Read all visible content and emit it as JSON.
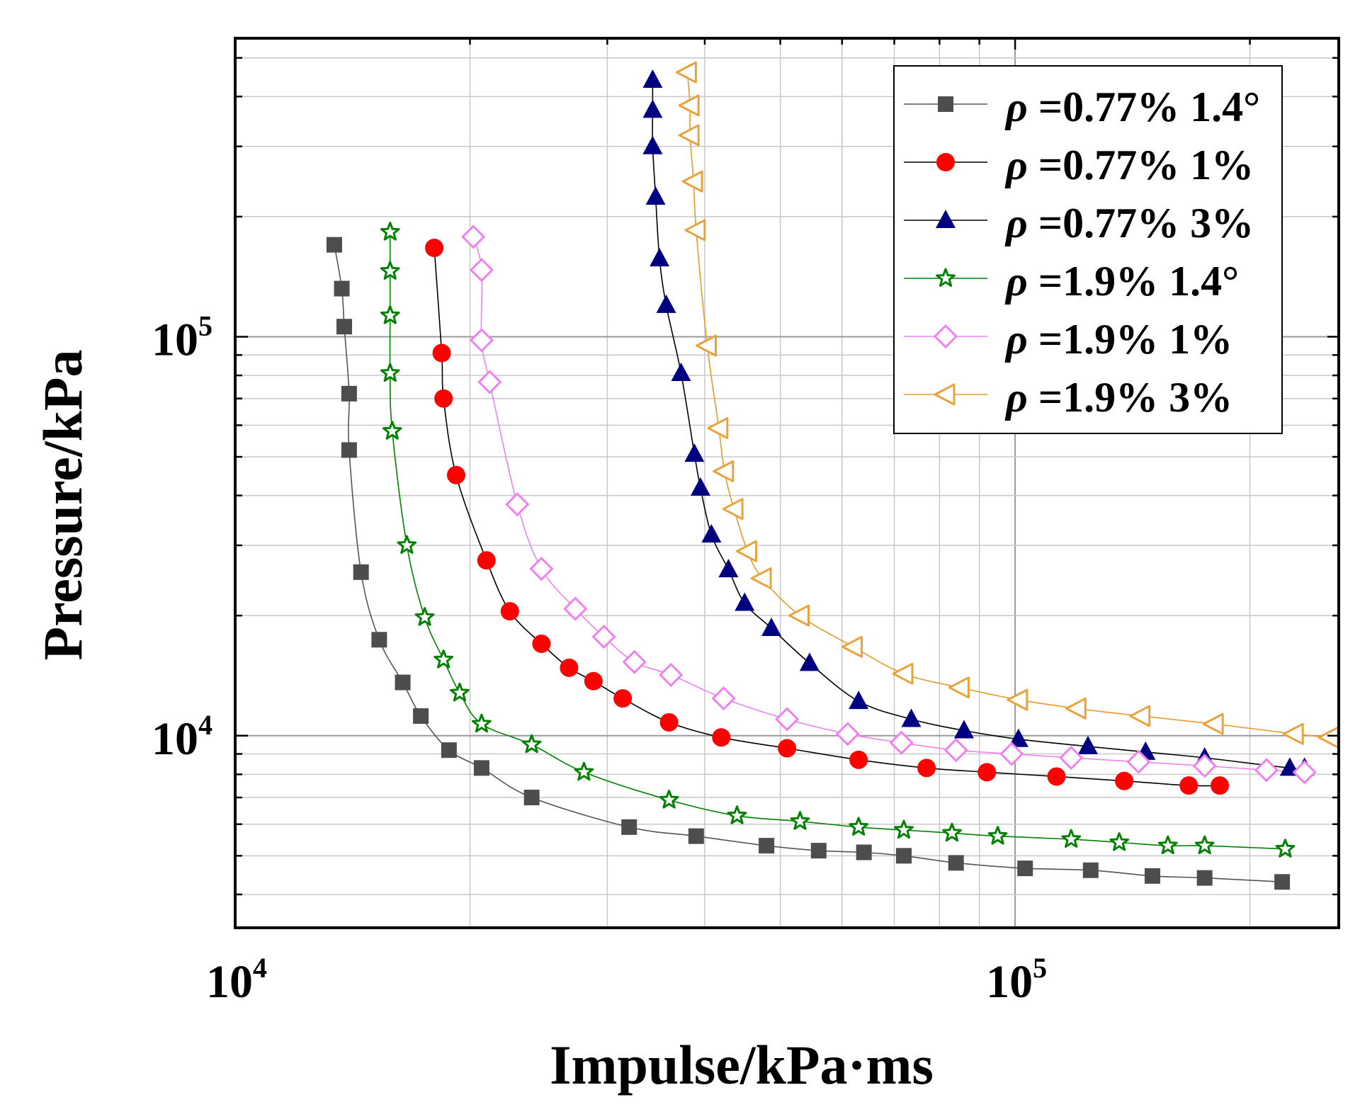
{
  "chart_data": {
    "type": "line",
    "xscale": "log",
    "yscale": "log",
    "xlabel": "Impulse/kPa·ms",
    "ylabel": "Pressure/kPa",
    "xlim": [
      10000,
      260000
    ],
    "ylim": [
      3300,
      560000
    ],
    "x_ticks": [
      {
        "value": 10000,
        "base": "10",
        "exp": "4"
      },
      {
        "value": 100000,
        "base": "10",
        "exp": "5"
      }
    ],
    "y_ticks": [
      {
        "value": 10000,
        "base": "10",
        "exp": "4"
      },
      {
        "value": 100000,
        "base": "10",
        "exp": "5"
      }
    ],
    "grid": true,
    "legend_position": "top-right",
    "series": [
      {
        "name": "ρ =0.77% 1.4°",
        "rho": "ρ",
        "label_rest": " =0.77% 1.4°",
        "marker": "square",
        "color": "#4d4d4d",
        "line_color": "#555555",
        "points": [
          [
            13400,
            170000
          ],
          [
            13700,
            132000
          ],
          [
            13800,
            106000
          ],
          [
            14000,
            72000
          ],
          [
            14000,
            52000
          ],
          [
            14500,
            25700
          ],
          [
            15300,
            17400
          ],
          [
            16400,
            13600
          ],
          [
            17300,
            11200
          ],
          [
            18800,
            9200
          ],
          [
            20700,
            8300
          ],
          [
            24000,
            7000
          ],
          [
            32000,
            5900
          ],
          [
            39000,
            5600
          ],
          [
            48000,
            5300
          ],
          [
            56000,
            5150
          ],
          [
            64000,
            5100
          ],
          [
            72000,
            5000
          ],
          [
            84000,
            4800
          ],
          [
            103000,
            4650
          ],
          [
            125000,
            4600
          ],
          [
            150000,
            4450
          ],
          [
            175000,
            4400
          ],
          [
            220000,
            4300
          ]
        ]
      },
      {
        "name": "ρ =0.77%  1%",
        "rho": "ρ",
        "label_rest": " =0.77%  1%",
        "marker": "circle",
        "color": "#ff0000",
        "line_color": "#000000",
        "points": [
          [
            18000,
            167000
          ],
          [
            18400,
            91000
          ],
          [
            18500,
            70000
          ],
          [
            19200,
            45000
          ],
          [
            21000,
            27500
          ],
          [
            22500,
            20500
          ],
          [
            24700,
            17000
          ],
          [
            26800,
            14800
          ],
          [
            28800,
            13700
          ],
          [
            31400,
            12400
          ],
          [
            36000,
            10800
          ],
          [
            42000,
            9900
          ],
          [
            51000,
            9300
          ],
          [
            63000,
            8700
          ],
          [
            77000,
            8300
          ],
          [
            92000,
            8100
          ],
          [
            113000,
            7900
          ],
          [
            138000,
            7700
          ],
          [
            167000,
            7500
          ],
          [
            183000,
            7500
          ]
        ]
      },
      {
        "name": "ρ =0.77%  3%",
        "rho": "ρ",
        "label_rest": " =0.77%  3%",
        "marker": "triangle-up",
        "color": "#000080",
        "line_color": "#000000",
        "points": [
          [
            34300,
            440000
          ],
          [
            34300,
            370000
          ],
          [
            34300,
            300000
          ],
          [
            34600,
            224000
          ],
          [
            35000,
            157000
          ],
          [
            35700,
            120000
          ],
          [
            37300,
            81000
          ],
          [
            38800,
            50800
          ],
          [
            39500,
            41800
          ],
          [
            40800,
            31900
          ],
          [
            42900,
            26100
          ],
          [
            45000,
            21500
          ],
          [
            48700,
            18600
          ],
          [
            54500,
            15200
          ],
          [
            63000,
            12200
          ],
          [
            73600,
            11000
          ],
          [
            86000,
            10300
          ],
          [
            101000,
            9800
          ],
          [
            124000,
            9400
          ],
          [
            147000,
            9100
          ],
          [
            175000,
            8800
          ],
          [
            225000,
            8300
          ],
          [
            235000,
            8300
          ]
        ]
      },
      {
        "name": "ρ =1.9%  1.4°",
        "rho": "ρ",
        "label_rest": " =1.9%  1.4°",
        "marker": "star",
        "color": "#008000",
        "line_color": "#008000",
        "points": [
          [
            15800,
            183000
          ],
          [
            15800,
            146000
          ],
          [
            15800,
            113000
          ],
          [
            15800,
            81000
          ],
          [
            15900,
            58000
          ],
          [
            16600,
            30000
          ],
          [
            17500,
            19800
          ],
          [
            18500,
            15500
          ],
          [
            19400,
            12800
          ],
          [
            20700,
            10700
          ],
          [
            24000,
            9500
          ],
          [
            28000,
            8100
          ],
          [
            36000,
            6900
          ],
          [
            44000,
            6300
          ],
          [
            53000,
            6100
          ],
          [
            63000,
            5900
          ],
          [
            72000,
            5800
          ],
          [
            83000,
            5700
          ],
          [
            95000,
            5600
          ],
          [
            118000,
            5500
          ],
          [
            136000,
            5400
          ],
          [
            157000,
            5300
          ],
          [
            175000,
            5300
          ],
          [
            222000,
            5200
          ]
        ]
      },
      {
        "name": "ρ =1.9%  1%",
        "rho": "ρ",
        "label_rest": " =1.9%  1%",
        "marker": "diamond",
        "color": "#ee82ee",
        "line_color": "#ee82ee",
        "points": [
          [
            20200,
            178000
          ],
          [
            20700,
            147000
          ],
          [
            20700,
            98000
          ],
          [
            21200,
            77000
          ],
          [
            23000,
            38000
          ],
          [
            24700,
            26200
          ],
          [
            27300,
            20800
          ],
          [
            29700,
            17700
          ],
          [
            32500,
            15300
          ],
          [
            36200,
            14200
          ],
          [
            42300,
            12400
          ],
          [
            51000,
            11000
          ],
          [
            61000,
            10100
          ],
          [
            71500,
            9600
          ],
          [
            84000,
            9200
          ],
          [
            99000,
            9000
          ],
          [
            118000,
            8800
          ],
          [
            144000,
            8600
          ],
          [
            175000,
            8400
          ],
          [
            210000,
            8200
          ],
          [
            235000,
            8100
          ]
        ]
      },
      {
        "name": "ρ =1.9%  3%",
        "rho": "ρ",
        "label_rest": " =1.9%  3%",
        "marker": "triangle-left",
        "color": "#e8a33d",
        "line_color": "#e89a28",
        "points": [
          [
            38000,
            460000
          ],
          [
            38300,
            380000
          ],
          [
            38300,
            320000
          ],
          [
            38700,
            245000
          ],
          [
            39000,
            185000
          ],
          [
            40300,
            95000
          ],
          [
            41700,
            59000
          ],
          [
            42400,
            46000
          ],
          [
            43600,
            37000
          ],
          [
            45400,
            29000
          ],
          [
            47400,
            24800
          ],
          [
            53000,
            20000
          ],
          [
            62000,
            16700
          ],
          [
            72000,
            14300
          ],
          [
            85000,
            13200
          ],
          [
            101000,
            12300
          ],
          [
            120000,
            11700
          ],
          [
            145000,
            11200
          ],
          [
            180000,
            10700
          ],
          [
            228000,
            10100
          ],
          [
            253000,
            9900
          ]
        ]
      }
    ]
  }
}
